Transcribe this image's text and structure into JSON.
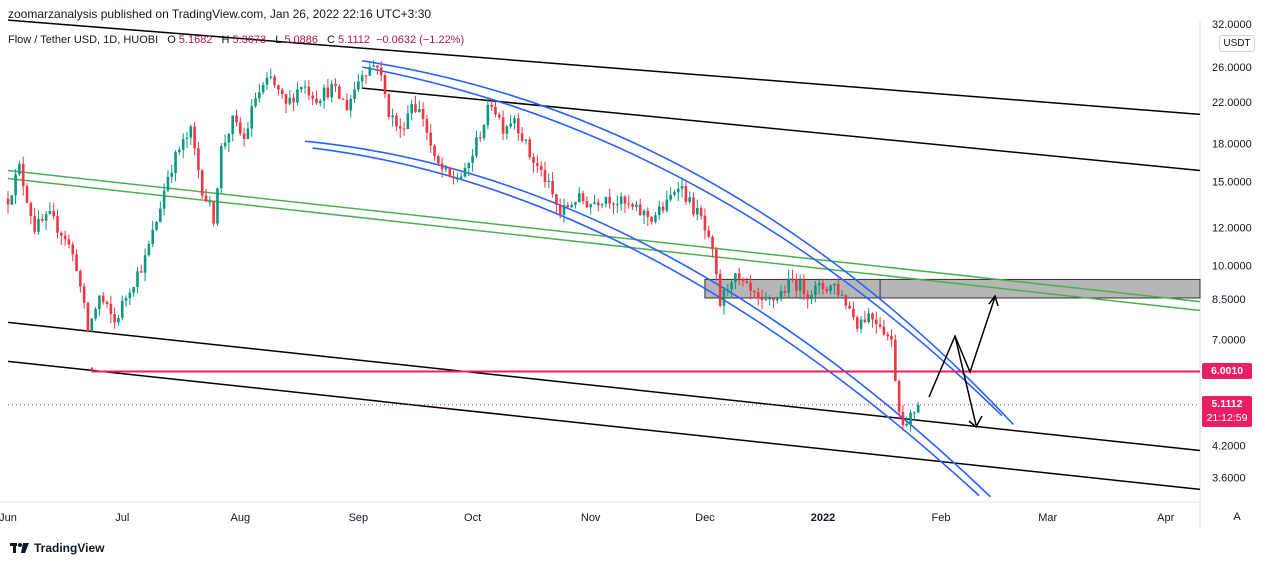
{
  "publisher_line": "zoomarzanalysis published on TradingView.com, Jan 26, 2022 22:16 UTC+3:30",
  "legend": {
    "symbol": "Flow / Tether USD, 1D, HUOBI",
    "open_label": "O",
    "open": "5.1682",
    "high_label": "H",
    "high": "5.3673",
    "low_label": "L",
    "low": "5.0886",
    "close_label": "C",
    "close": "5.1112",
    "change": "−0.0632 (−1.22%)"
  },
  "currency_button": "USDT",
  "auto_button": "A",
  "footer_brand": "TradingView",
  "chart_data": {
    "type": "candlestick",
    "y_scale": "log",
    "ylim": [
      3.2,
      32
    ],
    "y_ticks": [
      {
        "value": 32,
        "label": "32.0000"
      },
      {
        "value": 26,
        "label": "26.0000"
      },
      {
        "value": 22,
        "label": "22.0000"
      },
      {
        "value": 18,
        "label": "18.0000"
      },
      {
        "value": 15,
        "label": "15.0000"
      },
      {
        "value": 12,
        "label": "12.0000"
      },
      {
        "value": 10,
        "label": "10.0000"
      },
      {
        "value": 8.5,
        "label": "8.5000"
      },
      {
        "value": 7,
        "label": "7.0000"
      },
      {
        "value": 4.2,
        "label": "4.2000"
      },
      {
        "value": 3.6,
        "label": "3.6000"
      }
    ],
    "xlim": [
      "2021-06-01",
      "2022-04-10"
    ],
    "x_ticks": [
      {
        "date": "2021-06-01",
        "label": "Jun"
      },
      {
        "date": "2021-07-01",
        "label": "Jul"
      },
      {
        "date": "2021-08-01",
        "label": "Aug"
      },
      {
        "date": "2021-09-01",
        "label": "Sep"
      },
      {
        "date": "2021-10-01",
        "label": "Oct"
      },
      {
        "date": "2021-11-01",
        "label": "Nov"
      },
      {
        "date": "2021-12-01",
        "label": "Dec"
      },
      {
        "date": "2022-01-01",
        "label": "2022"
      },
      {
        "date": "2022-02-01",
        "label": "Feb"
      },
      {
        "date": "2022-03-01",
        "label": "Mar"
      },
      {
        "date": "2022-04-01",
        "label": "Apr"
      }
    ],
    "price_path": [
      [
        "2021-06-01",
        13.8
      ],
      [
        "2021-06-04",
        16.0
      ],
      [
        "2021-06-08",
        12.0
      ],
      [
        "2021-06-12",
        12.6
      ],
      [
        "2021-06-16",
        11.5
      ],
      [
        "2021-06-19",
        10.0
      ],
      [
        "2021-06-22",
        7.3
      ],
      [
        "2021-06-25",
        8.6
      ],
      [
        "2021-06-29",
        7.6
      ],
      [
        "2021-07-03",
        9.0
      ],
      [
        "2021-07-07",
        10.3
      ],
      [
        "2021-07-10",
        12.4
      ],
      [
        "2021-07-13",
        15.5
      ],
      [
        "2021-07-16",
        17.5
      ],
      [
        "2021-07-19",
        19.0
      ],
      [
        "2021-07-22",
        14.5
      ],
      [
        "2021-07-25",
        12.6
      ],
      [
        "2021-07-27",
        17.5
      ],
      [
        "2021-07-30",
        20.0
      ],
      [
        "2021-08-02",
        18.3
      ],
      [
        "2021-08-05",
        22.5
      ],
      [
        "2021-08-09",
        24.5
      ],
      [
        "2021-08-13",
        21.5
      ],
      [
        "2021-08-17",
        24.0
      ],
      [
        "2021-08-21",
        22.5
      ],
      [
        "2021-08-25",
        23.5
      ],
      [
        "2021-08-29",
        21.5
      ],
      [
        "2021-09-02",
        25.5
      ],
      [
        "2021-09-06",
        26.5
      ],
      [
        "2021-09-09",
        21.0
      ],
      [
        "2021-09-12",
        19.0
      ],
      [
        "2021-09-15",
        22.0
      ],
      [
        "2021-09-18",
        20.5
      ],
      [
        "2021-09-21",
        16.5
      ],
      [
        "2021-09-25",
        15.2
      ],
      [
        "2021-09-29",
        15.5
      ],
      [
        "2021-10-03",
        19.0
      ],
      [
        "2021-10-06",
        22.0
      ],
      [
        "2021-10-09",
        19.5
      ],
      [
        "2021-10-12",
        20.5
      ],
      [
        "2021-10-16",
        17.0
      ],
      [
        "2021-10-20",
        15.2
      ],
      [
        "2021-10-24",
        12.8
      ],
      [
        "2021-10-28",
        13.8
      ],
      [
        "2021-11-01",
        13.5
      ],
      [
        "2021-11-05",
        14.0
      ],
      [
        "2021-11-09",
        13.5
      ],
      [
        "2021-11-13",
        13.0
      ],
      [
        "2021-11-17",
        12.6
      ],
      [
        "2021-11-21",
        13.4
      ],
      [
        "2021-11-24",
        15.0
      ],
      [
        "2021-11-27",
        13.5
      ],
      [
        "2021-11-30",
        12.5
      ],
      [
        "2021-12-03",
        10.5
      ],
      [
        "2021-12-05",
        8.3
      ],
      [
        "2021-12-08",
        9.5
      ],
      [
        "2021-12-12",
        8.9
      ],
      [
        "2021-12-16",
        8.2
      ],
      [
        "2021-12-20",
        8.6
      ],
      [
        "2021-12-24",
        9.3
      ],
      [
        "2021-12-28",
        8.8
      ],
      [
        "2022-01-01",
        9.0
      ],
      [
        "2022-01-04",
        9.1
      ],
      [
        "2022-01-07",
        8.4
      ],
      [
        "2022-01-10",
        7.6
      ],
      [
        "2022-01-13",
        7.9
      ],
      [
        "2022-01-16",
        7.6
      ],
      [
        "2022-01-19",
        6.9
      ],
      [
        "2022-01-21",
        5.0
      ],
      [
        "2022-01-23",
        4.6
      ],
      [
        "2022-01-25",
        5.0
      ],
      [
        "2022-01-26",
        5.1112
      ]
    ],
    "annotations": {
      "horizontal_line": {
        "value": 6.001,
        "label": "6.0010",
        "color": "#e91e63",
        "from": "2021-06-23"
      },
      "last_price": {
        "value": 5.1112,
        "label": "5.1112",
        "countdown": "21:12:59",
        "color": "#e91e63"
      },
      "zone": {
        "from": "2021-12-01",
        "to": "2022-04-10",
        "low": 8.55,
        "high": 9.35,
        "color": "#9e9e9e"
      },
      "colors": {
        "up": "#089981",
        "down": "#f23645",
        "channel": "#000000",
        "arc": "#2962ff",
        "trend": "#4caf50"
      }
    }
  }
}
